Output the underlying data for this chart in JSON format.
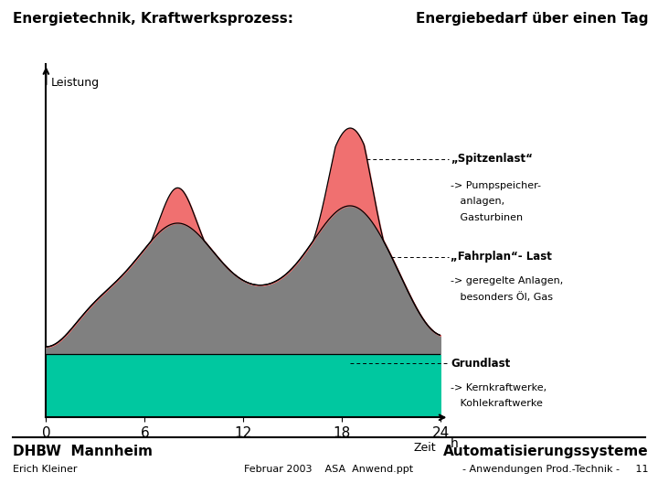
{
  "title_left": "Energietechnik, Kraftwerksprozess:",
  "title_right": "Energiebedarf über einen Tag",
  "ylabel": "Leistung",
  "xlabel": "Zeit",
  "x_ticks": [
    0,
    6,
    12,
    18,
    24
  ],
  "grundlast_level": 1.8,
  "grundlast_color": "#00C8A0",
  "fahrplan_color": "#808080",
  "spitzenlast_color": "#F07070",
  "bg_color": "#FFFFFF",
  "spitzenlast_label": "„Spitzenlast“",
  "spitzenlast_sub1": "-> Pumpspeicher-",
  "spitzenlast_sub2": "   anlagen,",
  "spitzenlast_sub3": "   Gasturbinen",
  "fahrplan_label": "„Fahrplan“- Last",
  "fahrplan_sub1": "-> geregelte Anlagen,",
  "fahrplan_sub2": "   besonders Öl, Gas",
  "grundlast_label": "Grundlast",
  "grundlast_sub1": "-> Kernkraftwerke,",
  "grundlast_sub2": "   Kohlekraftwerke",
  "footer_left1": "DHBW  Mannheim",
  "footer_left2": "Erich Kleiner",
  "footer_center": "Februar 2003    ASA  Anwend.ppt",
  "footer_right1": "Automatisierungssysteme",
  "footer_right2": "- Anwendungen Prod.-Technik -     11"
}
